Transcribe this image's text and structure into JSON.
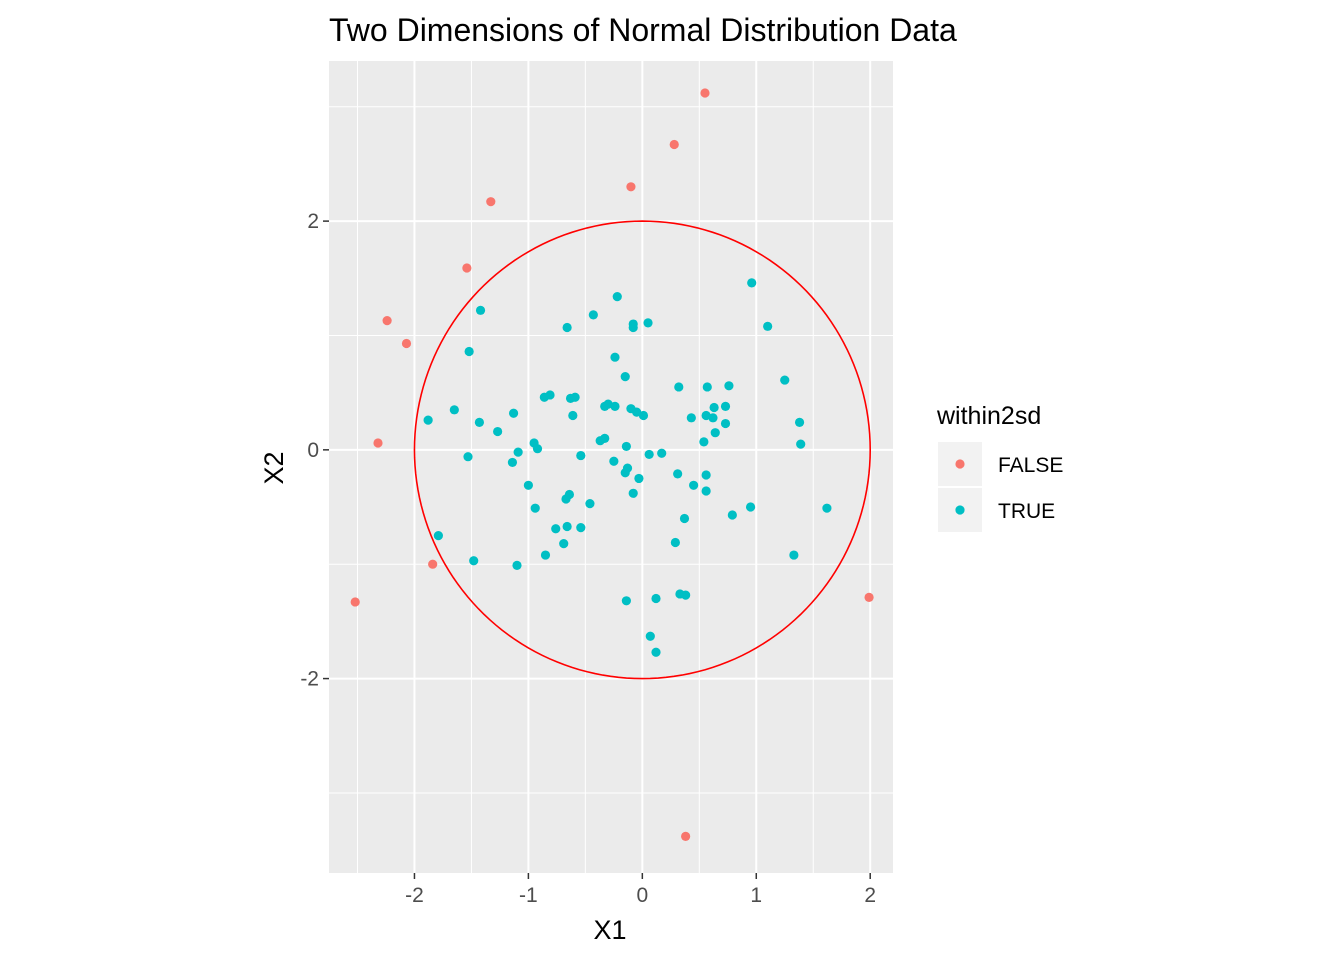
{
  "chart_data": {
    "type": "scatter",
    "title": "Two Dimensions of Normal Distribution Data",
    "xlabel": "X1",
    "ylabel": "X2",
    "xlim": [
      -2.75,
      2.2
    ],
    "ylim": [
      -3.7,
      3.4
    ],
    "x_ticks": [
      -2,
      -1,
      0,
      1,
      2
    ],
    "y_ticks": [
      -2,
      0,
      2
    ],
    "x_tick_labels": [
      "-2",
      "-1",
      "0",
      "1",
      "2"
    ],
    "y_tick_labels": [
      "-2",
      "0",
      "2"
    ],
    "grid": true,
    "panel_background": "#EBEBEB",
    "legend": {
      "title": "within2sd",
      "position": "right",
      "entries": [
        {
          "label": "FALSE",
          "color": "#F8766D"
        },
        {
          "label": "TRUE",
          "color": "#00BFC4"
        }
      ]
    },
    "circle": {
      "center": [
        0,
        0
      ],
      "radius": 2,
      "color": "#FF0000"
    },
    "series": [
      {
        "name": "FALSE",
        "color": "#F8766D",
        "points": [
          [
            0.55,
            3.12
          ],
          [
            0.28,
            2.67
          ],
          [
            -0.1,
            2.3
          ],
          [
            -1.33,
            2.17
          ],
          [
            -1.54,
            1.59
          ],
          [
            -2.24,
            1.13
          ],
          [
            -2.07,
            0.93
          ],
          [
            -2.32,
            0.06
          ],
          [
            -1.84,
            -1.0
          ],
          [
            -2.52,
            -1.33
          ],
          [
            1.99,
            -1.29
          ],
          [
            0.38,
            -3.38
          ]
        ]
      },
      {
        "name": "TRUE",
        "color": "#00BFC4",
        "points": [
          [
            0.96,
            1.46
          ],
          [
            -0.22,
            1.34
          ],
          [
            1.1,
            1.08
          ],
          [
            0.05,
            1.11
          ],
          [
            -0.08,
            1.1
          ],
          [
            -0.08,
            1.07
          ],
          [
            -0.66,
            1.07
          ],
          [
            -0.43,
            1.18
          ],
          [
            -1.42,
            1.22
          ],
          [
            -1.52,
            0.86
          ],
          [
            -0.24,
            0.81
          ],
          [
            -0.15,
            0.64
          ],
          [
            1.25,
            0.61
          ],
          [
            0.32,
            0.55
          ],
          [
            0.57,
            0.55
          ],
          [
            0.76,
            0.56
          ],
          [
            -0.81,
            0.48
          ],
          [
            -0.86,
            0.46
          ],
          [
            -0.63,
            0.45
          ],
          [
            -0.59,
            0.46
          ],
          [
            -0.3,
            0.4
          ],
          [
            -0.24,
            0.38
          ],
          [
            -0.33,
            0.38
          ],
          [
            -0.1,
            0.36
          ],
          [
            -0.05,
            0.33
          ],
          [
            0.01,
            0.3
          ],
          [
            -0.61,
            0.3
          ],
          [
            0.63,
            0.37
          ],
          [
            0.73,
            0.38
          ],
          [
            0.56,
            0.3
          ],
          [
            0.43,
            0.28
          ],
          [
            0.62,
            0.28
          ],
          [
            0.73,
            0.23
          ],
          [
            -1.65,
            0.35
          ],
          [
            -1.88,
            0.26
          ],
          [
            -1.43,
            0.24
          ],
          [
            -1.27,
            0.16
          ],
          [
            -1.13,
            0.32
          ],
          [
            1.38,
            0.24
          ],
          [
            0.64,
            0.15
          ],
          [
            0.54,
            0.07
          ],
          [
            1.39,
            0.05
          ],
          [
            -0.37,
            0.08
          ],
          [
            -0.33,
            0.1
          ],
          [
            -0.14,
            0.03
          ],
          [
            -0.95,
            0.06
          ],
          [
            -0.92,
            0.01
          ],
          [
            -1.09,
            -0.02
          ],
          [
            -1.53,
            -0.06
          ],
          [
            -1.14,
            -0.11
          ],
          [
            -0.54,
            -0.05
          ],
          [
            0.06,
            -0.04
          ],
          [
            0.17,
            -0.03
          ],
          [
            -0.25,
            -0.1
          ],
          [
            -0.13,
            -0.16
          ],
          [
            -0.15,
            -0.2
          ],
          [
            -0.03,
            -0.25
          ],
          [
            0.31,
            -0.21
          ],
          [
            0.56,
            -0.22
          ],
          [
            -1.0,
            -0.31
          ],
          [
            0.45,
            -0.31
          ],
          [
            0.56,
            -0.36
          ],
          [
            -0.08,
            -0.38
          ],
          [
            -0.64,
            -0.39
          ],
          [
            -0.67,
            -0.43
          ],
          [
            -0.46,
            -0.47
          ],
          [
            -0.94,
            -0.51
          ],
          [
            0.95,
            -0.5
          ],
          [
            1.62,
            -0.51
          ],
          [
            0.79,
            -0.57
          ],
          [
            0.37,
            -0.6
          ],
          [
            -0.54,
            -0.68
          ],
          [
            -0.66,
            -0.67
          ],
          [
            -0.76,
            -0.69
          ],
          [
            -1.79,
            -0.75
          ],
          [
            -0.69,
            -0.82
          ],
          [
            0.29,
            -0.81
          ],
          [
            -0.85,
            -0.92
          ],
          [
            1.33,
            -0.92
          ],
          [
            -1.48,
            -0.97
          ],
          [
            -1.1,
            -1.01
          ],
          [
            0.33,
            -1.26
          ],
          [
            0.38,
            -1.27
          ],
          [
            -0.14,
            -1.32
          ],
          [
            0.12,
            -1.3
          ],
          [
            0.07,
            -1.63
          ],
          [
            0.12,
            -1.77
          ]
        ]
      }
    ]
  }
}
